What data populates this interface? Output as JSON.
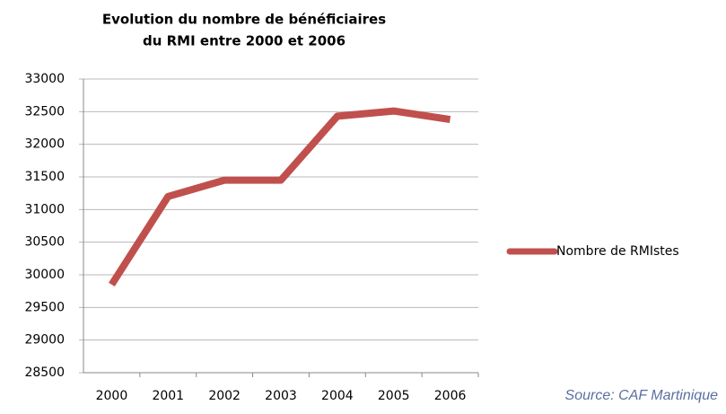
{
  "chart_data": {
    "type": "line",
    "title": [
      "Evolution du nombre de bénéficiaires",
      "du RMI entre 2000 et 2006"
    ],
    "categories": [
      "2000",
      "2001",
      "2002",
      "2003",
      "2004",
      "2005",
      "2006"
    ],
    "series": [
      {
        "name": "Nombre de RMIstes",
        "color": "#c0504d",
        "values": [
          29850,
          31200,
          31450,
          31450,
          32430,
          32510,
          32380
        ]
      }
    ],
    "ylim": [
      28500,
      33000
    ],
    "yticks": [
      28500,
      29000,
      29500,
      30000,
      30500,
      31000,
      31500,
      32000,
      32500,
      33000
    ],
    "grid": true,
    "legend": "right",
    "annotation": "Source: CAF Martinique"
  }
}
